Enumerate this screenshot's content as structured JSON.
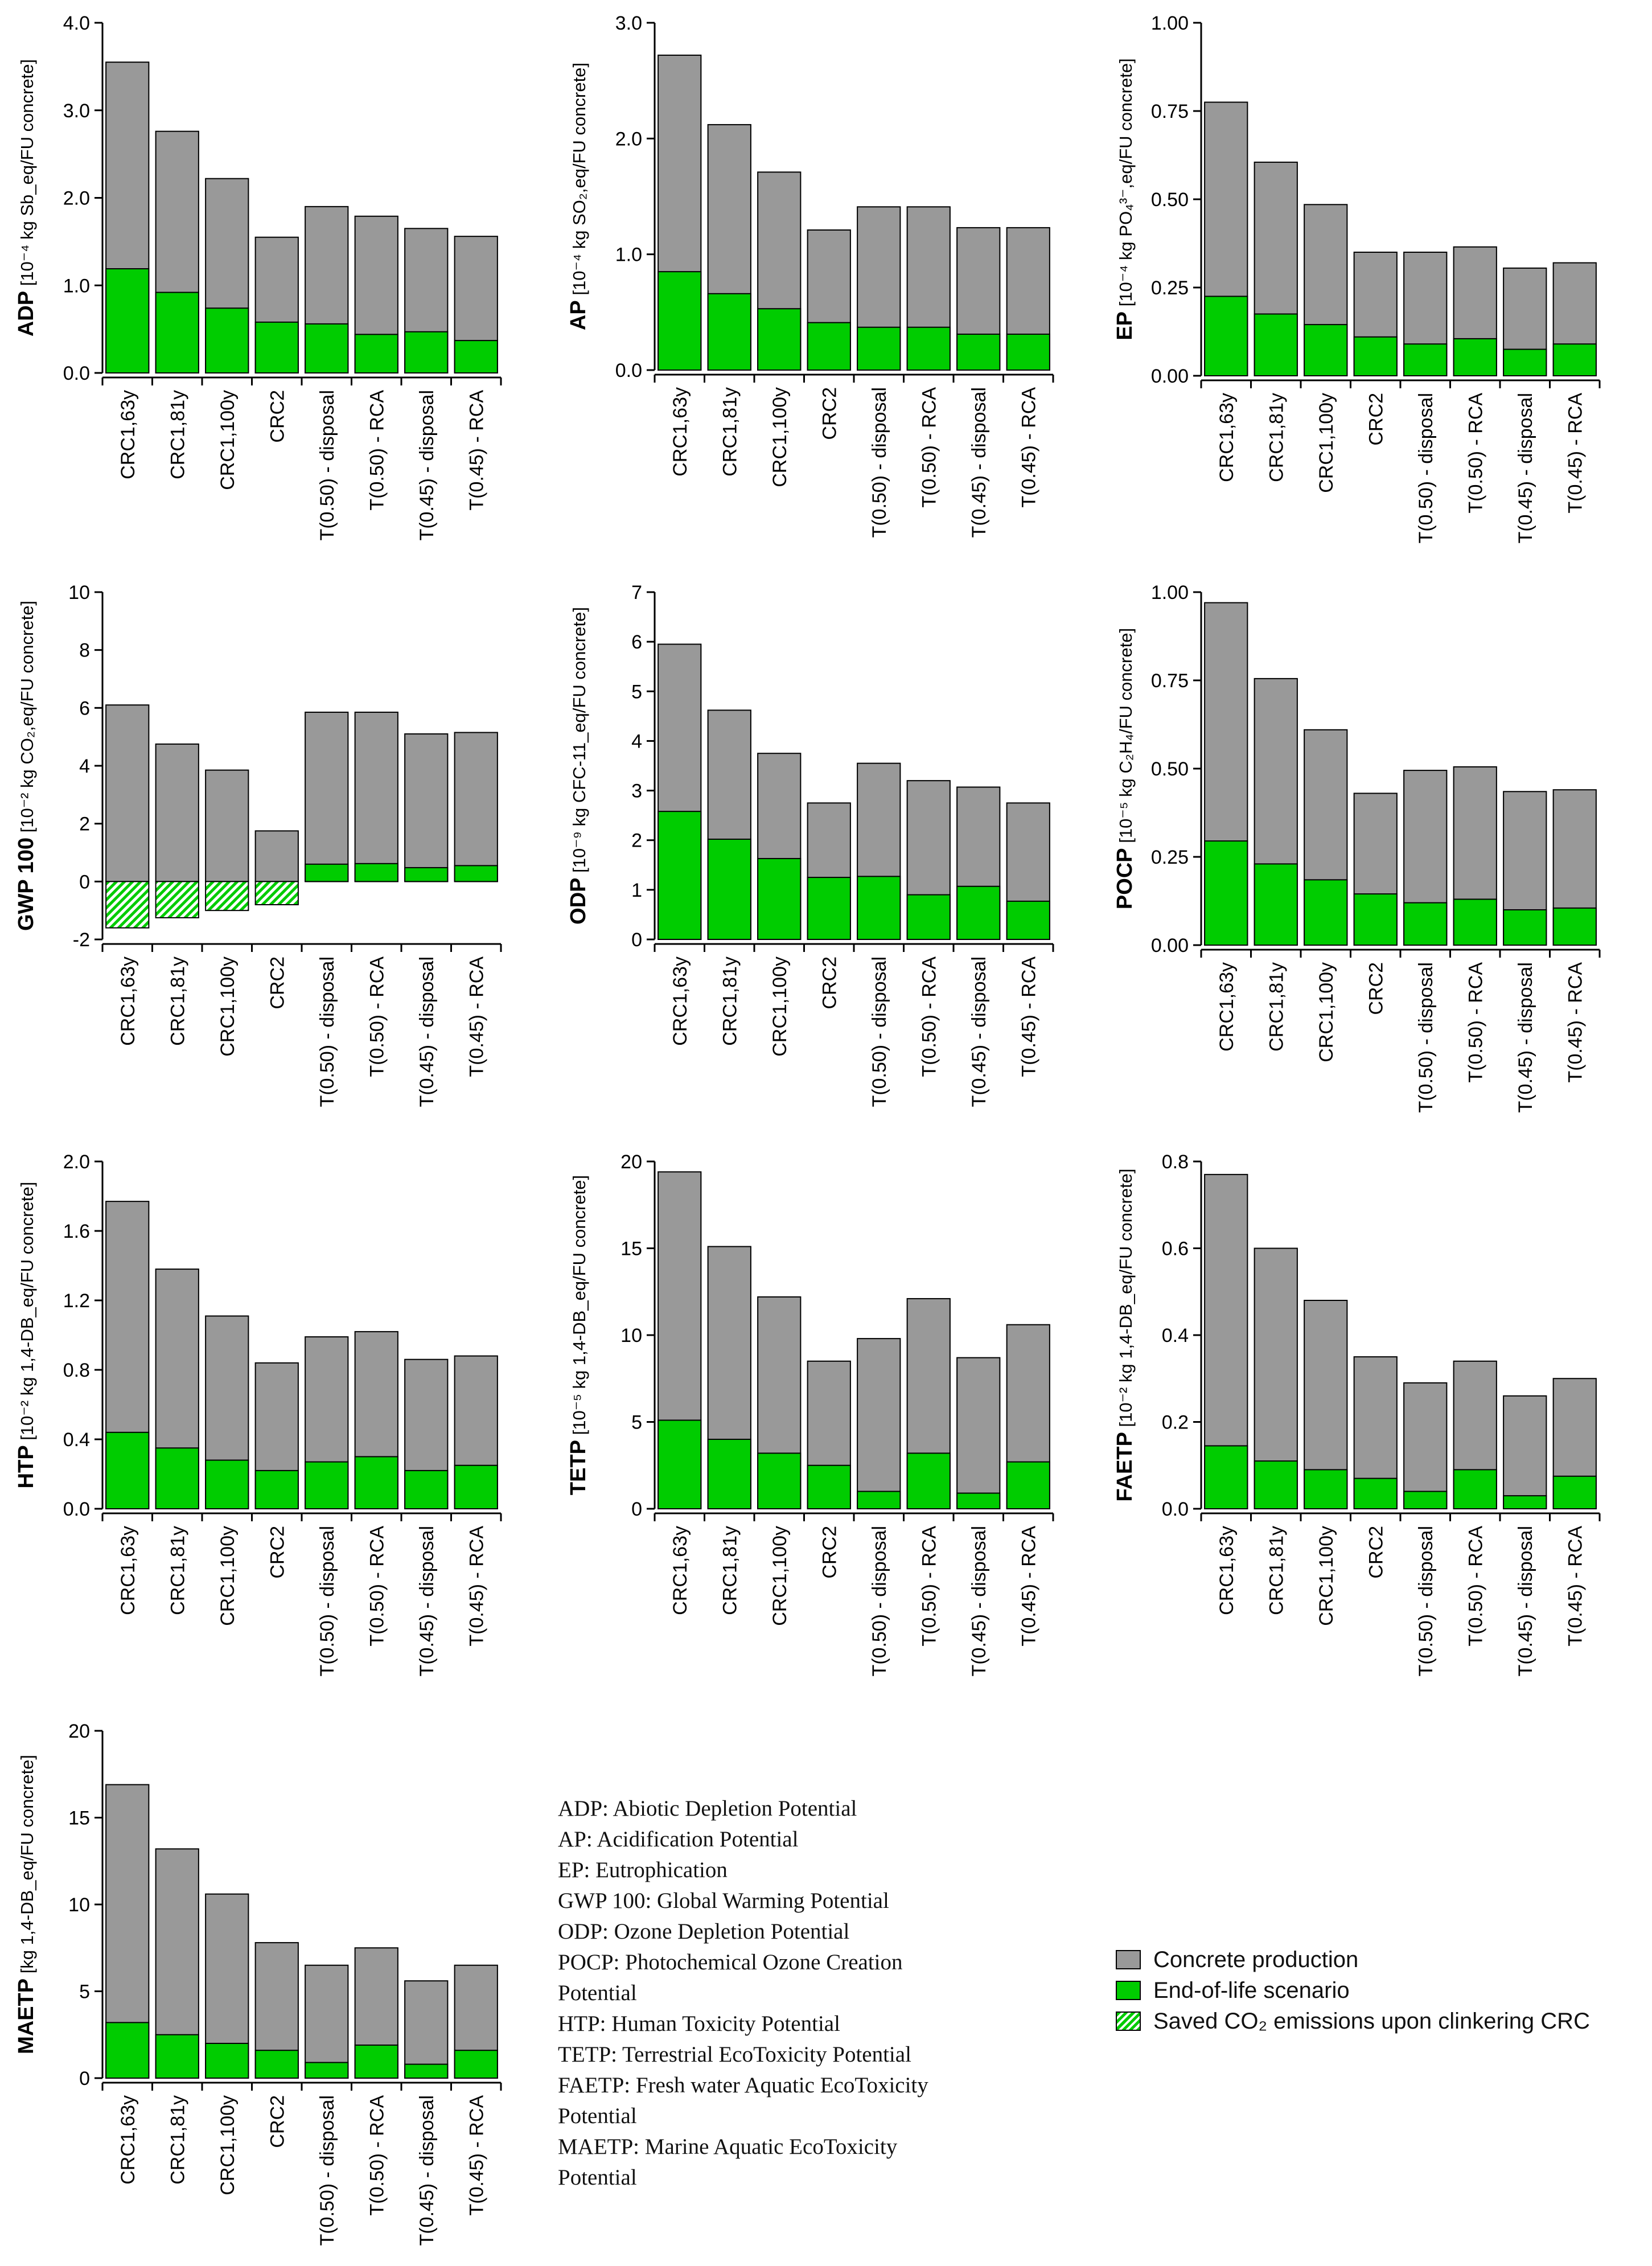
{
  "categories": [
    "CRC1,63y",
    "CRC1,81y",
    "CRC1,100y",
    "CRC2",
    "T(0.50) - disposal",
    "T(0.50) - RCA",
    "T(0.45) - disposal",
    "T(0.45) - RCA"
  ],
  "chart_data": [
    {
      "type": "bar",
      "id": "adp",
      "title": "ADP",
      "ylabel_bold": "ADP",
      "ylabel_rest": " [10⁻⁴ kg Sb_eq/FU concrete]",
      "ylim": [
        0,
        4.0
      ],
      "yticks": [
        "0.0",
        "1.0",
        "2.0",
        "3.0",
        "4.0"
      ],
      "ytick_values": [
        0,
        1,
        2,
        3,
        4
      ],
      "categories": [
        "CRC1,63y",
        "CRC1,81y",
        "CRC1,100y",
        "CRC2",
        "T(0.50) - disposal",
        "T(0.50) - RCA",
        "T(0.45) - disposal",
        "T(0.45) - RCA"
      ],
      "series": [
        {
          "name": "Concrete production (total)",
          "values": [
            3.55,
            2.76,
            2.22,
            1.55,
            1.9,
            1.79,
            1.65,
            1.56
          ]
        },
        {
          "name": "End-of-life scenario",
          "values": [
            1.19,
            0.92,
            0.74,
            0.58,
            0.56,
            0.44,
            0.47,
            0.37
          ]
        }
      ]
    },
    {
      "type": "bar",
      "id": "ap",
      "title": "AP",
      "ylabel_bold": "AP",
      "ylabel_rest": " [10⁻⁴ kg SO₂,eq/FU concrete]",
      "ylim": [
        0,
        3.0
      ],
      "yticks": [
        "0.0",
        "1.0",
        "2.0",
        "3.0"
      ],
      "ytick_values": [
        0,
        1,
        2,
        3
      ],
      "categories": [
        "CRC1,63y",
        "CRC1,81y",
        "CRC1,100y",
        "CRC2",
        "T(0.50) - disposal",
        "T(0.50) - RCA",
        "T(0.45) - disposal",
        "T(0.45) - RCA"
      ],
      "series": [
        {
          "name": "Concrete production (total)",
          "values": [
            2.72,
            2.12,
            1.71,
            1.21,
            1.41,
            1.41,
            1.23,
            1.23
          ]
        },
        {
          "name": "End-of-life scenario",
          "values": [
            0.85,
            0.66,
            0.53,
            0.41,
            0.37,
            0.37,
            0.31,
            0.31
          ]
        }
      ]
    },
    {
      "type": "bar",
      "id": "ep",
      "title": "EP",
      "ylabel_bold": "EP",
      "ylabel_rest": " [10⁻⁴ kg PO₄³⁻,eq/FU concrete]",
      "ylim": [
        0,
        1.0
      ],
      "yticks": [
        "0.00",
        "0.25",
        "0.50",
        "0.75",
        "1.00"
      ],
      "ytick_values": [
        0,
        0.25,
        0.5,
        0.75,
        1.0
      ],
      "categories": [
        "CRC1,63y",
        "CRC1,81y",
        "CRC1,100y",
        "CRC2",
        "T(0.50) - disposal",
        "T(0.50) - RCA",
        "T(0.45) - disposal",
        "T(0.45) - RCA"
      ],
      "series": [
        {
          "name": "Concrete production (total)",
          "values": [
            0.775,
            0.605,
            0.485,
            0.35,
            0.35,
            0.365,
            0.305,
            0.32
          ]
        },
        {
          "name": "End-of-life scenario",
          "values": [
            0.225,
            0.175,
            0.145,
            0.11,
            0.09,
            0.105,
            0.075,
            0.09
          ]
        }
      ]
    },
    {
      "type": "bar",
      "id": "gwp",
      "title": "GWP 100",
      "ylabel_bold": "GWP 100",
      "ylabel_rest": " [10⁻² kg CO₂,eq/FU concrete]",
      "ylim": [
        -2,
        10
      ],
      "yticks": [
        "-2",
        "0",
        "2",
        "4",
        "6",
        "8",
        "10"
      ],
      "ytick_values": [
        -2,
        0,
        2,
        4,
        6,
        8,
        10
      ],
      "categories": [
        "CRC1,63y",
        "CRC1,81y",
        "CRC1,100y",
        "CRC2",
        "T(0.50) - disposal",
        "T(0.50) - RCA",
        "T(0.45) - disposal",
        "T(0.45) - RCA"
      ],
      "series": [
        {
          "name": "Concrete production (total)",
          "values": [
            6.1,
            4.75,
            3.85,
            1.75,
            5.85,
            5.85,
            5.1,
            5.15
          ]
        },
        {
          "name": "End-of-life scenario",
          "values": [
            0,
            0,
            0,
            0,
            0.6,
            0.62,
            0.48,
            0.55
          ]
        },
        {
          "name": "Saved CO2 emissions upon clinkering CRC",
          "values": [
            -1.6,
            -1.25,
            -1.0,
            -0.8,
            0,
            0,
            0,
            0
          ]
        }
      ]
    },
    {
      "type": "bar",
      "id": "odp",
      "title": "ODP",
      "ylabel_bold": "ODP",
      "ylabel_rest": " [10⁻⁹ kg CFC-11_eq/FU concrete]",
      "ylim": [
        0,
        7
      ],
      "yticks": [
        "0",
        "1",
        "2",
        "3",
        "4",
        "5",
        "6",
        "7"
      ],
      "ytick_values": [
        0,
        1,
        2,
        3,
        4,
        5,
        6,
        7
      ],
      "categories": [
        "CRC1,63y",
        "CRC1,81y",
        "CRC1,100y",
        "CRC2",
        "T(0.50) - disposal",
        "T(0.50) - RCA",
        "T(0.45) - disposal",
        "T(0.45) - RCA"
      ],
      "series": [
        {
          "name": "Concrete production (total)",
          "values": [
            5.95,
            4.62,
            3.75,
            2.75,
            3.55,
            3.2,
            3.07,
            2.75
          ]
        },
        {
          "name": "End-of-life scenario",
          "values": [
            2.58,
            2.02,
            1.63,
            1.25,
            1.27,
            0.9,
            1.07,
            0.77
          ]
        }
      ]
    },
    {
      "type": "bar",
      "id": "pocp",
      "title": "POCP",
      "ylabel_bold": "POCP",
      "ylabel_rest": " [10⁻⁵ kg C₂H₄/FU concrete]",
      "ylim": [
        0,
        1.0
      ],
      "yticks": [
        "0.00",
        "0.25",
        "0.50",
        "0.75",
        "1.00"
      ],
      "ytick_values": [
        0,
        0.25,
        0.5,
        0.75,
        1.0
      ],
      "categories": [
        "CRC1,63y",
        "CRC1,81y",
        "CRC1,100y",
        "CRC2",
        "T(0.50) - disposal",
        "T(0.50) - RCA",
        "T(0.45) - disposal",
        "T(0.45) - RCA"
      ],
      "series": [
        {
          "name": "Concrete production (total)",
          "values": [
            0.97,
            0.755,
            0.61,
            0.43,
            0.495,
            0.505,
            0.435,
            0.44
          ]
        },
        {
          "name": "End-of-life scenario",
          "values": [
            0.295,
            0.23,
            0.185,
            0.145,
            0.12,
            0.13,
            0.1,
            0.105
          ]
        }
      ]
    },
    {
      "type": "bar",
      "id": "htp",
      "title": "HTP",
      "ylabel_bold": "HTP",
      "ylabel_rest": " [10⁻² kg 1,4-DB_eq/FU concrete]",
      "ylim": [
        0,
        2.0
      ],
      "yticks": [
        "0.0",
        "0.4",
        "0.8",
        "1.2",
        "1.6",
        "2.0"
      ],
      "ytick_values": [
        0,
        0.4,
        0.8,
        1.2,
        1.6,
        2.0
      ],
      "categories": [
        "CRC1,63y",
        "CRC1,81y",
        "CRC1,100y",
        "CRC2",
        "T(0.50) - disposal",
        "T(0.50) - RCA",
        "T(0.45) - disposal",
        "T(0.45) - RCA"
      ],
      "series": [
        {
          "name": "Concrete production (total)",
          "values": [
            1.77,
            1.38,
            1.11,
            0.84,
            0.99,
            1.02,
            0.86,
            0.88
          ]
        },
        {
          "name": "End-of-life scenario",
          "values": [
            0.44,
            0.35,
            0.28,
            0.22,
            0.27,
            0.3,
            0.22,
            0.25
          ]
        }
      ]
    },
    {
      "type": "bar",
      "id": "tetp",
      "title": "TETP",
      "ylabel_bold": "TETP",
      "ylabel_rest": " [10⁻⁵ kg 1,4-DB_eq/FU concrete]",
      "ylim": [
        0,
        20
      ],
      "yticks": [
        "0",
        "5",
        "10",
        "15",
        "20"
      ],
      "ytick_values": [
        0,
        5,
        10,
        15,
        20
      ],
      "categories": [
        "CRC1,63y",
        "CRC1,81y",
        "CRC1,100y",
        "CRC2",
        "T(0.50) - disposal",
        "T(0.50) - RCA",
        "T(0.45) - disposal",
        "T(0.45) - RCA"
      ],
      "series": [
        {
          "name": "Concrete production (total)",
          "values": [
            19.4,
            15.1,
            12.2,
            8.5,
            9.8,
            12.1,
            8.7,
            10.6
          ]
        },
        {
          "name": "End-of-life scenario",
          "values": [
            5.1,
            4.0,
            3.2,
            2.5,
            1.0,
            3.2,
            0.9,
            2.7
          ]
        }
      ]
    },
    {
      "type": "bar",
      "id": "faetp",
      "title": "FAETP",
      "ylabel_bold": "FAETP",
      "ylabel_rest": " [10⁻² kg 1,4-DB_eq/FU concrete]",
      "ylim": [
        0,
        0.8
      ],
      "yticks": [
        "0.0",
        "0.2",
        "0.4",
        "0.6",
        "0.8"
      ],
      "ytick_values": [
        0,
        0.2,
        0.4,
        0.6,
        0.8
      ],
      "categories": [
        "CRC1,63y",
        "CRC1,81y",
        "CRC1,100y",
        "CRC2",
        "T(0.50) - disposal",
        "T(0.50) - RCA",
        "T(0.45) - disposal",
        "T(0.45) - RCA"
      ],
      "series": [
        {
          "name": "Concrete production (total)",
          "values": [
            0.77,
            0.6,
            0.48,
            0.35,
            0.29,
            0.34,
            0.26,
            0.3
          ]
        },
        {
          "name": "End-of-life scenario",
          "values": [
            0.145,
            0.11,
            0.09,
            0.07,
            0.04,
            0.09,
            0.03,
            0.075
          ]
        }
      ]
    },
    {
      "type": "bar",
      "id": "maetp",
      "title": "MAETP",
      "ylabel_bold": "MAETP",
      "ylabel_rest": " [kg 1,4-DB_eq/FU concrete]",
      "ylim": [
        0,
        20
      ],
      "yticks": [
        "0",
        "5",
        "10",
        "15",
        "20"
      ],
      "ytick_values": [
        0,
        5,
        10,
        15,
        20
      ],
      "categories": [
        "CRC1,63y",
        "CRC1,81y",
        "CRC1,100y",
        "CRC2",
        "T(0.50) - disposal",
        "T(0.50) - RCA",
        "T(0.45) - disposal",
        "T(0.45) - RCA"
      ],
      "series": [
        {
          "name": "Concrete production (total)",
          "values": [
            16.9,
            13.2,
            10.6,
            7.8,
            6.5,
            7.5,
            5.6,
            6.5
          ]
        },
        {
          "name": "End-of-life scenario",
          "values": [
            3.2,
            2.5,
            2.0,
            1.6,
            0.9,
            1.9,
            0.8,
            1.6
          ]
        }
      ]
    }
  ],
  "abbreviations": [
    "ADP: Abiotic Depletion Potential",
    "AP: Acidification Potential",
    "EP: Eutrophication",
    "GWP 100: Global Warming Potential",
    "ODP: Ozone Depletion Potential",
    "POCP: Photochemical Ozone Creation",
    "Potential",
    "HTP: Human Toxicity Potential",
    "TETP: Terrestrial EcoToxicity Potential",
    "FAETP: Fresh water Aquatic EcoToxicity",
    "Potential",
    "MAETP: Marine Aquatic EcoToxicity",
    "Potential"
  ],
  "legend": {
    "production": "Concrete production",
    "eol": "End-of-life scenario",
    "saved": "Saved CO₂ emissions upon clinkering CRC"
  },
  "colors": {
    "production": "#999999",
    "eol": "#00cc00",
    "axis": "#000000"
  }
}
